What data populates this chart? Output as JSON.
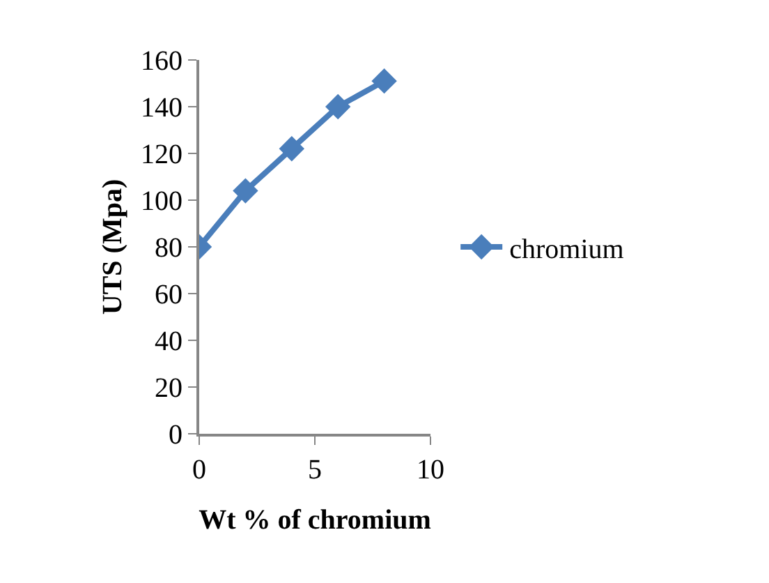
{
  "chart_data": {
    "type": "line",
    "xlabel": "Wt % of chromium",
    "ylabel": "UTS (Mpa)",
    "x": [
      0,
      2,
      4,
      6,
      8
    ],
    "series": [
      {
        "name": "chromium",
        "color": "#4a7ebb",
        "values": [
          80,
          104,
          122,
          140,
          151
        ]
      }
    ],
    "xlim": [
      0,
      10
    ],
    "xticks": [
      0,
      5,
      10
    ],
    "ylim": [
      0,
      160
    ],
    "yticks": [
      0,
      20,
      40,
      60,
      80,
      100,
      120,
      140,
      160
    ],
    "legend": "right",
    "marker": "diamond",
    "line_style": "solid"
  }
}
